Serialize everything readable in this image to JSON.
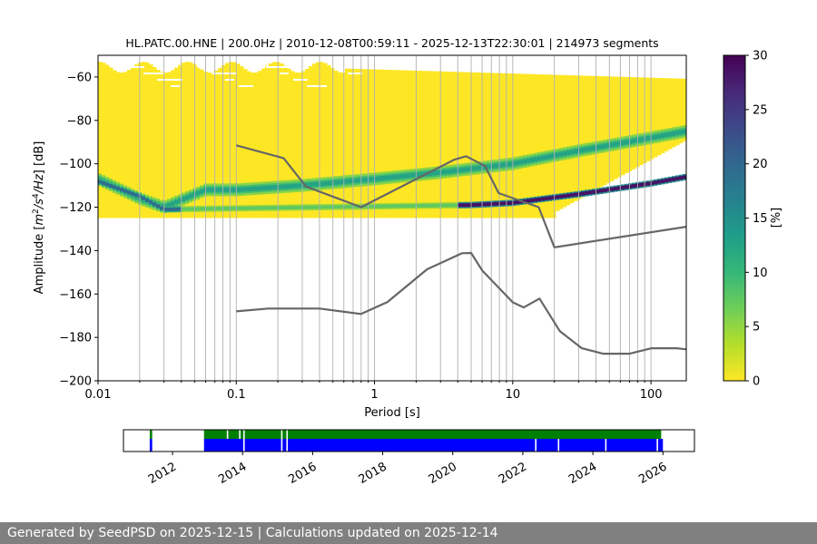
{
  "chart_data": [
    {
      "type": "heatmap",
      "title": "HL.PATC.00.HNE | 200.0Hz | 2010-12-08T00:59:11 - 2025-12-13T22:30:01 | 214973 segments",
      "xlabel": "Period [s]",
      "ylabel_parts": [
        "Amplitude [",
        "m",
        "2",
        "/",
        "s",
        "4",
        "/",
        "Hz",
        "] [dB]"
      ],
      "x_scale": "log",
      "xlim": [
        0.01,
        180
      ],
      "ylim": [
        -200,
        -50
      ],
      "x_ticks": [
        0.01,
        0.1,
        1,
        10,
        100
      ],
      "x_tick_labels": [
        "0.01",
        "0.1",
        "1",
        "10",
        "100"
      ],
      "y_ticks": [
        -200,
        -180,
        -160,
        -140,
        -120,
        -100,
        -80,
        -60
      ],
      "y_tick_labels": [
        "−200",
        "−180",
        "−160",
        "−140",
        "−120",
        "−100",
        "−80",
        "−60"
      ],
      "colorbar": {
        "label": "[%]",
        "range": [
          0,
          30
        ],
        "ticks": [
          0,
          5,
          10,
          15,
          20,
          25,
          30
        ],
        "tick_labels": [
          "0",
          "5",
          "10",
          "15",
          "20",
          "25",
          "30"
        ],
        "colormap": [
          "#fde725",
          "#b5de2b",
          "#6ece58",
          "#35b779",
          "#1f9e89",
          "#26828e",
          "#31688e",
          "#3e4989",
          "#482878",
          "#440154"
        ]
      },
      "grid": "vertical lines at period ticks",
      "series": [
        {
          "role": "high noise model",
          "color": "#666666",
          "points": [
            [
              0.1,
              -91.5
            ],
            [
              0.22,
              -97.4
            ],
            [
              0.32,
              -110.5
            ],
            [
              0.8,
              -120
            ],
            [
              3.8,
              -98
            ],
            [
              4.6,
              -96.5
            ],
            [
              6.3,
              -101
            ],
            [
              7.9,
              -113.5
            ],
            [
              15.4,
              -120
            ],
            [
              20,
              -138.5
            ],
            [
              180,
              -129
            ]
          ]
        },
        {
          "role": "low noise model",
          "color": "#666666",
          "points": [
            [
              0.1,
              -168
            ],
            [
              0.17,
              -166.7
            ],
            [
              0.4,
              -166.7
            ],
            [
              0.8,
              -169.2
            ],
            [
              1.24,
              -163.7
            ],
            [
              2.4,
              -148.6
            ],
            [
              4.3,
              -141.2
            ],
            [
              5,
              -141.1
            ],
            [
              6,
              -149.1
            ],
            [
              10,
              -163.8
            ],
            [
              12,
              -166.2
            ],
            [
              15.6,
              -162.1
            ],
            [
              21.9,
              -177.1
            ],
            [
              31.6,
              -185
            ],
            [
              45,
              -187.5
            ],
            [
              70,
              -187.5
            ],
            [
              101,
              -185
            ],
            [
              154,
              -185
            ],
            [
              180,
              -185.5
            ]
          ]
        }
      ],
      "density_summary": {
        "description": "PSD probability density (percent of segments per bin)",
        "upper_yellow_band_top_dB": -53,
        "lower_yellow_band_bottom_dB": -125,
        "dense_microseism_trace": [
          [
            0.01,
            -107
          ],
          [
            0.02,
            -116
          ],
          [
            0.03,
            -120
          ],
          [
            0.06,
            -112
          ],
          [
            0.1,
            -112
          ],
          [
            0.3,
            -110
          ],
          [
            1,
            -107
          ],
          [
            3,
            -104
          ],
          [
            10,
            -100
          ],
          [
            30,
            -94
          ],
          [
            100,
            -88
          ],
          [
            180,
            -85
          ]
        ],
        "peak_trace": [
          [
            0.01,
            -108
          ],
          [
            0.02,
            -115
          ],
          [
            0.03,
            -121
          ],
          [
            5,
            -119
          ],
          [
            10,
            -118
          ],
          [
            30,
            -114
          ],
          [
            100,
            -109
          ],
          [
            180,
            -106
          ]
        ]
      }
    },
    {
      "type": "timeline",
      "description": "data availability bar",
      "xlim": [
        2010.6,
        2026.9
      ],
      "x_ticks": [
        2012,
        2014,
        2016,
        2018,
        2020,
        2022,
        2024,
        2026
      ],
      "x_tick_labels": [
        "2012",
        "2014",
        "2016",
        "2018",
        "2020",
        "2022",
        "2024",
        "2026"
      ],
      "rows": [
        {
          "color": "#008000",
          "segments": [
            [
              2011.35,
              2011.42
            ],
            [
              2012.9,
              2025.95
            ]
          ],
          "gaps": [
            2013.55,
            2013.9,
            2014.02,
            2015.1,
            2015.25
          ]
        },
        {
          "color": "#0000ff",
          "segments": [
            [
              2011.35,
              2011.42
            ],
            [
              2012.9,
              2026.0
            ]
          ],
          "gaps": [
            2014.02,
            2015.1,
            2015.25,
            2022.35,
            2023.0,
            2024.35,
            2025.82
          ]
        }
      ]
    }
  ],
  "footer": {
    "text": "Generated by SeedPSD on 2025-12-15 | Calculations updated on 2025-12-14"
  }
}
